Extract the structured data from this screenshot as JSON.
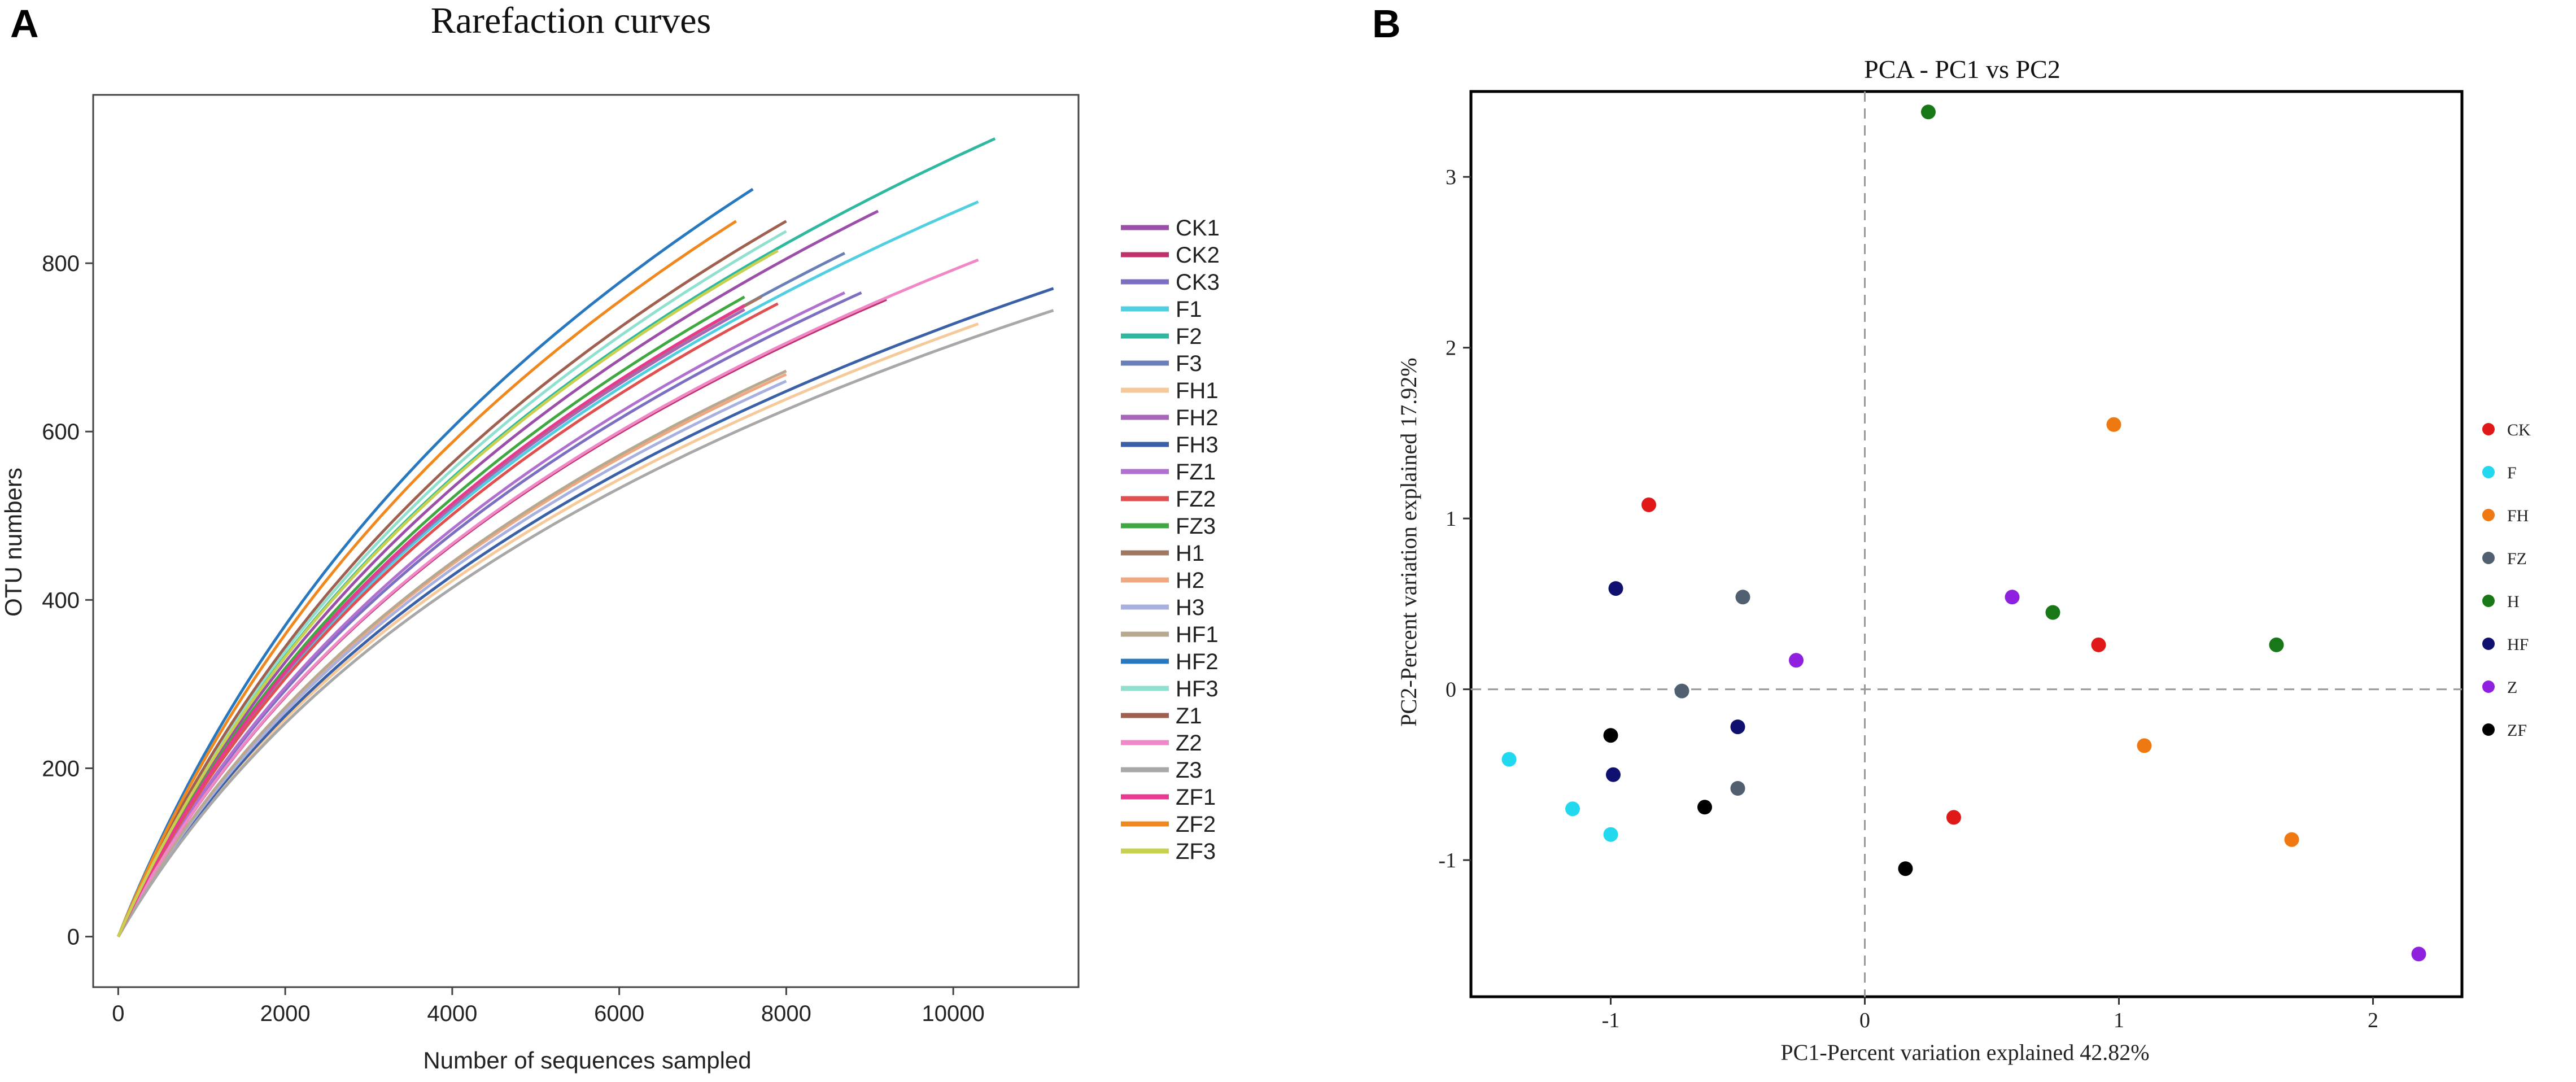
{
  "panels": {
    "a_label": "A",
    "b_label": "B"
  },
  "chart_data": [
    {
      "type": "line",
      "title": "Rarefaction curves",
      "xlabel": "Number of sequences sampled",
      "ylabel": "OTU numbers",
      "xlim": [
        -300,
        11500
      ],
      "ylim": [
        -60,
        1000
      ],
      "xticks": [
        0,
        2000,
        4000,
        6000,
        8000,
        10000
      ],
      "yticks": [
        0,
        200,
        400,
        600,
        800
      ],
      "legend_position": "right",
      "series": [
        {
          "name": "CK1",
          "color": "#9b4fa8",
          "xmax": 9100,
          "ymax": 862
        },
        {
          "name": "CK2",
          "color": "#c0306a",
          "xmax": 9200,
          "ymax": 757
        },
        {
          "name": "CK3",
          "color": "#7a6fc0",
          "xmax": 8900,
          "ymax": 765
        },
        {
          "name": "F1",
          "color": "#4fcfe0",
          "xmax": 10300,
          "ymax": 873
        },
        {
          "name": "F2",
          "color": "#2fb8a0",
          "xmax": 10500,
          "ymax": 948
        },
        {
          "name": "F3",
          "color": "#6a7fb8",
          "xmax": 8700,
          "ymax": 812
        },
        {
          "name": "FH1",
          "color": "#f5c99a",
          "xmax": 10300,
          "ymax": 728
        },
        {
          "name": "FH2",
          "color": "#a766b8",
          "xmax": 7500,
          "ymax": 745
        },
        {
          "name": "FH3",
          "color": "#3a60a8",
          "xmax": 11200,
          "ymax": 770
        },
        {
          "name": "FZ1",
          "color": "#b070d0",
          "xmax": 8700,
          "ymax": 765
        },
        {
          "name": "FZ2",
          "color": "#e05050",
          "xmax": 7900,
          "ymax": 752
        },
        {
          "name": "FZ3",
          "color": "#40a840",
          "xmax": 7500,
          "ymax": 760
        },
        {
          "name": "H1",
          "color": "#a07860",
          "xmax": 7700,
          "ymax": 760
        },
        {
          "name": "H2",
          "color": "#f0a880",
          "xmax": 8000,
          "ymax": 668
        },
        {
          "name": "H3",
          "color": "#a8b0e0",
          "xmax": 8000,
          "ymax": 660
        },
        {
          "name": "HF1",
          "color": "#b8a890",
          "xmax": 8000,
          "ymax": 672
        },
        {
          "name": "HF2",
          "color": "#2878c0",
          "xmax": 7600,
          "ymax": 888
        },
        {
          "name": "HF3",
          "color": "#90e0d0",
          "xmax": 8000,
          "ymax": 838
        },
        {
          "name": "Z1",
          "color": "#a06050",
          "xmax": 8000,
          "ymax": 850
        },
        {
          "name": "Z2",
          "color": "#f088c8",
          "xmax": 10300,
          "ymax": 804
        },
        {
          "name": "Z3",
          "color": "#a8a8a8",
          "xmax": 11200,
          "ymax": 744
        },
        {
          "name": "ZF1",
          "color": "#e83890",
          "xmax": 7500,
          "ymax": 750
        },
        {
          "name": "ZF2",
          "color": "#f08820",
          "xmax": 7400,
          "ymax": 850
        },
        {
          "name": "ZF3",
          "color": "#c8d050",
          "xmax": 7900,
          "ymax": 815
        }
      ]
    },
    {
      "type": "scatter",
      "title": "PCA - PC1 vs PC2",
      "xlabel": "PC1-Percent variation explained 42.82%",
      "ylabel": "PC2-Percent variation explained 17.92%",
      "xlim": [
        -1.55,
        2.35
      ],
      "ylim": [
        -1.8,
        3.5
      ],
      "xticks": [
        -1,
        0,
        1,
        2
      ],
      "yticks": [
        -1,
        0,
        1,
        2,
        3
      ],
      "legend_position": "right",
      "groups": [
        {
          "name": "CK",
          "color": "#e01818",
          "points": [
            [
              -0.85,
              1.08
            ],
            [
              0.92,
              0.26
            ],
            [
              0.35,
              -0.75
            ]
          ]
        },
        {
          "name": "F",
          "color": "#22d8ee",
          "points": [
            [
              -1.4,
              -0.41
            ],
            [
              -1.15,
              -0.7
            ],
            [
              -1.0,
              -0.85
            ]
          ]
        },
        {
          "name": "FH",
          "color": "#f07810",
          "points": [
            [
              0.98,
              1.55
            ],
            [
              1.1,
              -0.33
            ],
            [
              1.68,
              -0.88
            ]
          ]
        },
        {
          "name": "FZ",
          "color": "#506070",
          "points": [
            [
              -0.48,
              0.54
            ],
            [
              -0.72,
              -0.01
            ],
            [
              -0.5,
              -0.58
            ]
          ]
        },
        {
          "name": "H",
          "color": "#187818",
          "points": [
            [
              0.25,
              3.38
            ],
            [
              0.74,
              0.45
            ],
            [
              1.62,
              0.26
            ]
          ]
        },
        {
          "name": "HF",
          "color": "#101070",
          "points": [
            [
              -0.98,
              0.59
            ],
            [
              -0.5,
              -0.22
            ],
            [
              -0.99,
              -0.5
            ]
          ]
        },
        {
          "name": "Z",
          "color": "#9020e0",
          "points": [
            [
              0.58,
              0.54
            ],
            [
              -0.27,
              0.17
            ],
            [
              2.18,
              -1.55
            ]
          ]
        },
        {
          "name": "ZF",
          "color": "#000000",
          "points": [
            [
              -1.0,
              -0.27
            ],
            [
              -0.63,
              -0.69
            ],
            [
              0.16,
              -1.05
            ]
          ]
        }
      ]
    }
  ]
}
